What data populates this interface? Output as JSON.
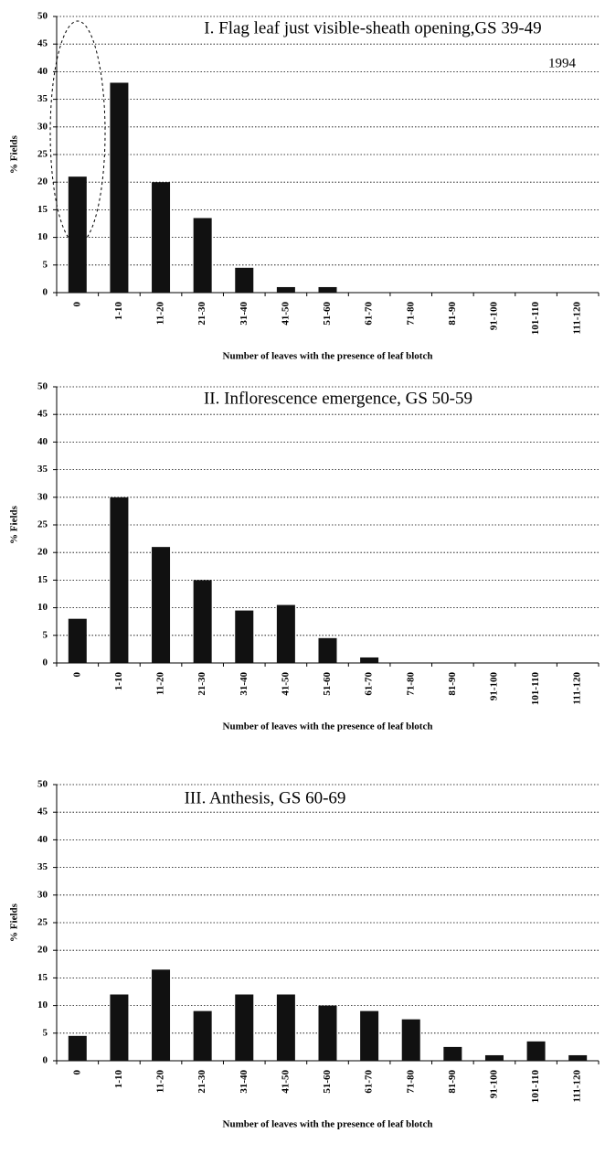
{
  "chart_data": [
    {
      "type": "bar",
      "title": "I. Flag leaf just visible-sheath opening,GS 39-49",
      "annotation": "1994",
      "x_label": "Number of leaves with the presence of leaf blotch",
      "y_label": "% Fields",
      "categories": [
        "0",
        "1-10",
        "11-20",
        "21-30",
        "31-40",
        "41-50",
        "51-60",
        "61-70",
        "71-80",
        "81-90",
        "91-100",
        "101-110",
        "111-120"
      ],
      "values": [
        21,
        38,
        20,
        13.5,
        4.5,
        1,
        1,
        0,
        0,
        0,
        0,
        0,
        0
      ],
      "color": "#111111",
      "ylim": [
        0,
        50
      ],
      "yticks": [
        0,
        5,
        10,
        15,
        20,
        25,
        30,
        35,
        40,
        45,
        50
      ],
      "grid": true
    },
    {
      "type": "bar",
      "title": "II. Inflorescence emergence, GS 50-59",
      "x_label": "Number of leaves with the presence of leaf blotch",
      "y_label": "% Fields",
      "categories": [
        "0",
        "1-10",
        "11-20",
        "21-30",
        "31-40",
        "41-50",
        "51-60",
        "61-70",
        "71-80",
        "81-90",
        "91-100",
        "101-110",
        "111-120"
      ],
      "values": [
        8,
        30,
        21,
        15,
        9.5,
        10.5,
        4.5,
        1,
        0,
        0,
        0,
        0,
        0
      ],
      "color": "#111111",
      "ylim": [
        0,
        50
      ],
      "yticks": [
        0,
        5,
        10,
        15,
        20,
        25,
        30,
        35,
        40,
        45,
        50
      ],
      "grid": true
    },
    {
      "type": "bar",
      "title": "III. Anthesis, GS 60-69",
      "x_label": "Number of leaves with the presence of leaf blotch",
      "y_label": "% Fields",
      "categories": [
        "0",
        "1-10",
        "11-20",
        "21-30",
        "31-40",
        "41-50",
        "51-60",
        "61-70",
        "71-80",
        "81-90",
        "91-100",
        "101-110",
        "111-120"
      ],
      "values": [
        4.5,
        12,
        16.5,
        9,
        12,
        12,
        10,
        9,
        7.5,
        2.5,
        1,
        3.5,
        1
      ],
      "color": "#111111",
      "ylim": [
        0,
        50
      ],
      "yticks": [
        0,
        5,
        10,
        15,
        20,
        25,
        30,
        35,
        40,
        45,
        50
      ],
      "grid": true
    }
  ]
}
